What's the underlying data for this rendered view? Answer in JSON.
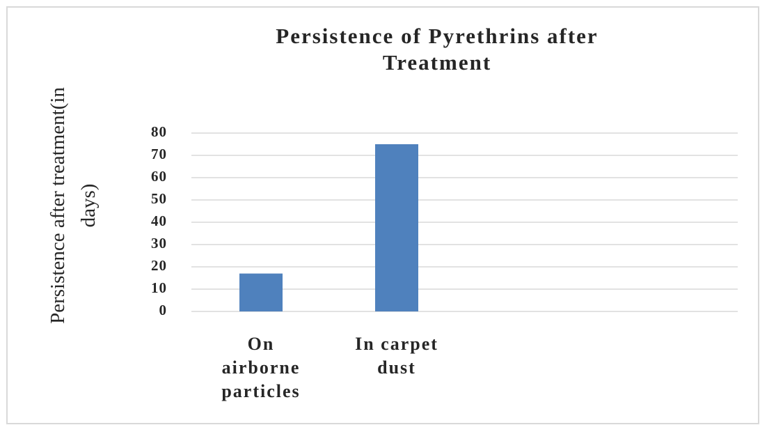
{
  "chart_data": {
    "type": "bar",
    "title": "Persistence of Pyrethrins after Treatment",
    "y_label": "Persistence after treatment(in days)",
    "categories": [
      "On airborne particles",
      "In carpet dust"
    ],
    "values": [
      17,
      75
    ],
    "color": "#4f81bd",
    "ylim": [
      0,
      80
    ],
    "yticks": [
      0,
      10,
      20,
      30,
      40,
      50,
      60,
      70,
      80
    ],
    "grid": true
  }
}
